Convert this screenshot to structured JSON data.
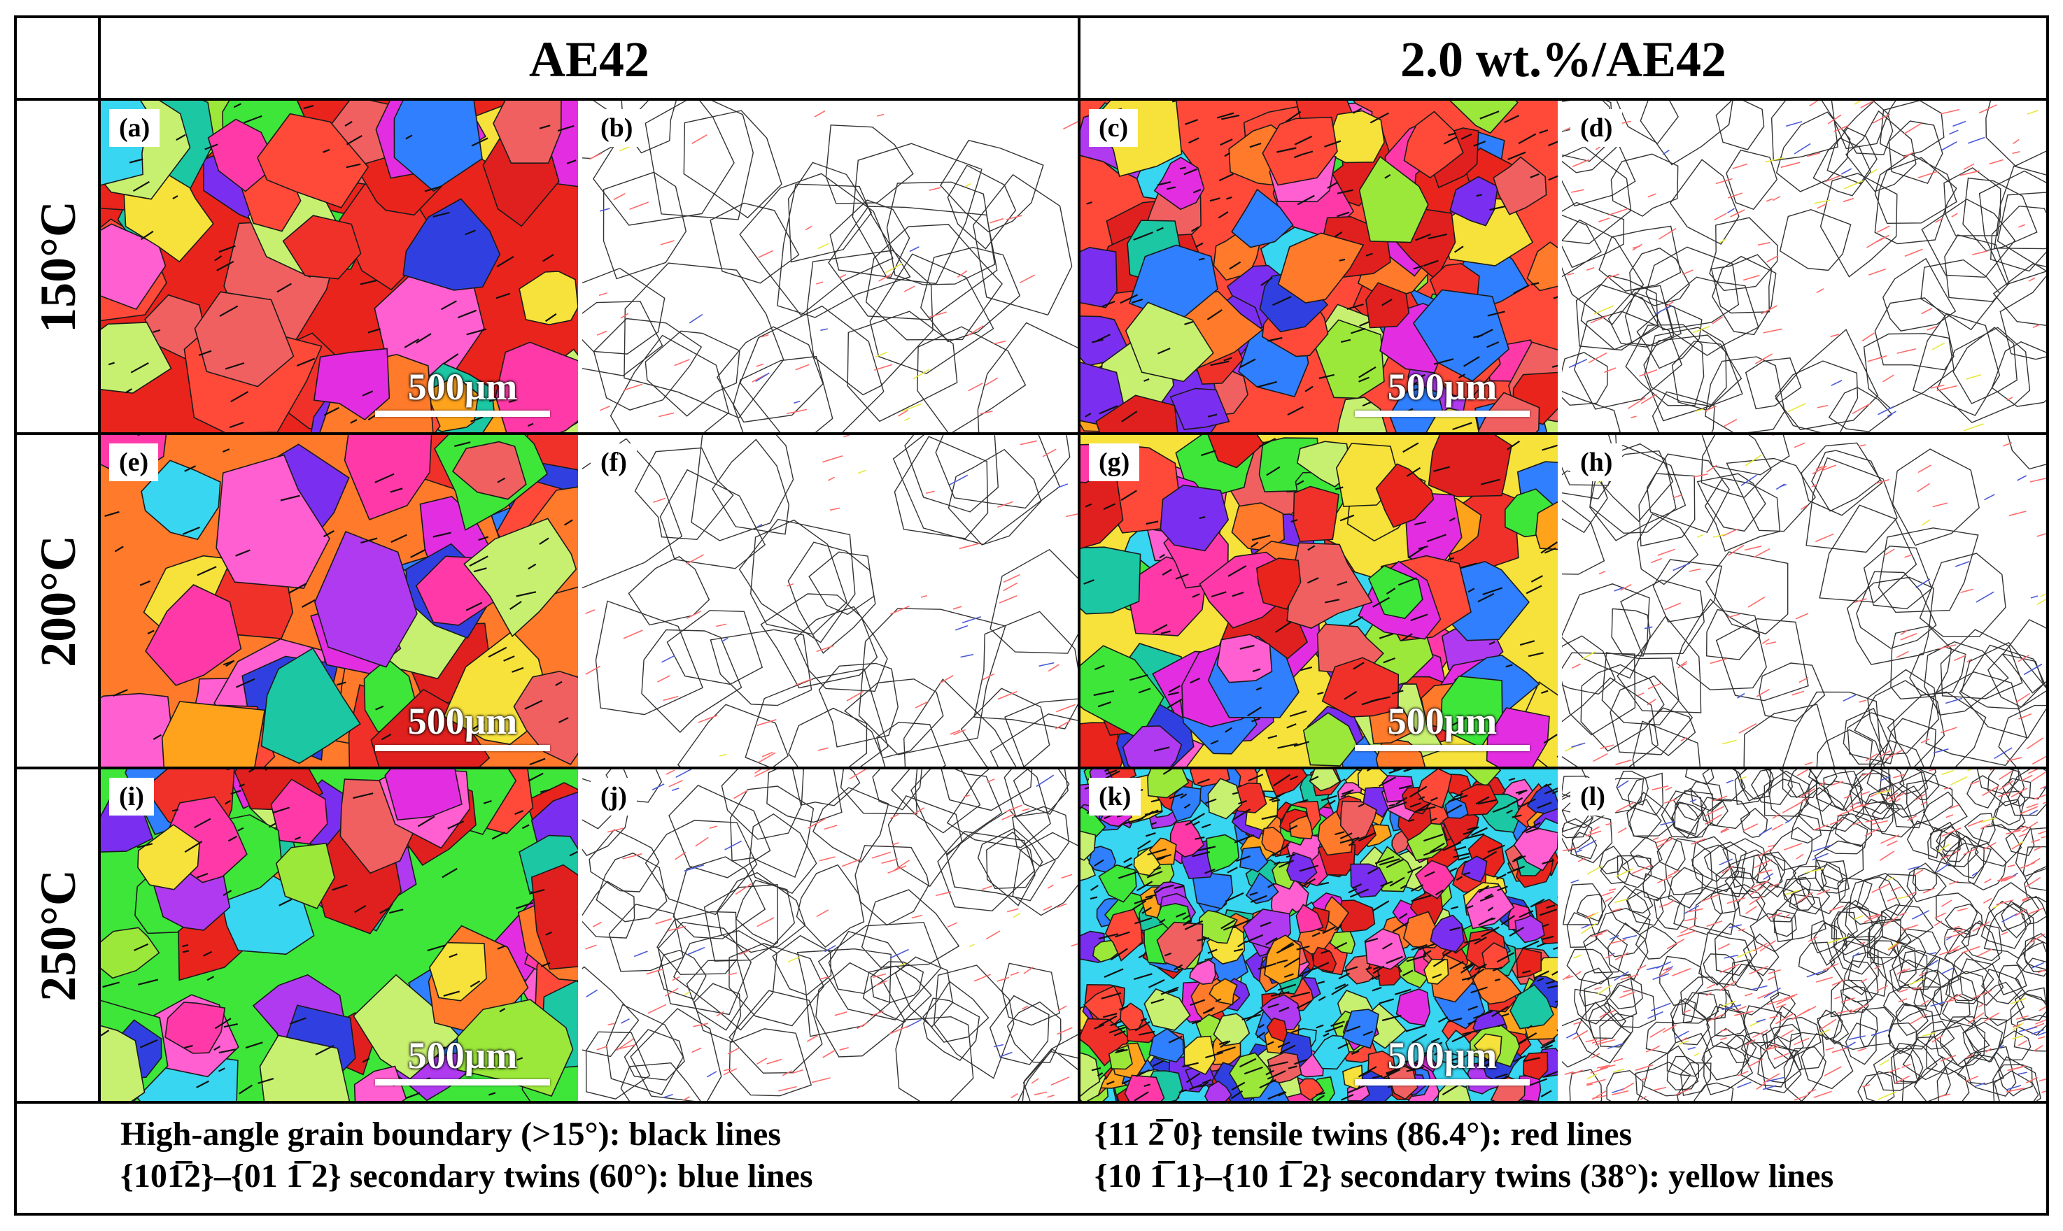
{
  "header": {
    "col1": "AE42",
    "col2": "2.0 wt.%/AE42"
  },
  "rows": [
    "150°C",
    "200°C",
    "250°C"
  ],
  "panels": [
    {
      "label": "(a)",
      "type": "ipf",
      "scalebar": "500μm"
    },
    {
      "label": "(b)",
      "type": "boundary"
    },
    {
      "label": "(c)",
      "type": "ipf",
      "scalebar": "500μm"
    },
    {
      "label": "(d)",
      "type": "boundary"
    },
    {
      "label": "(e)",
      "type": "ipf",
      "scalebar": "500μm"
    },
    {
      "label": "(f)",
      "type": "boundary"
    },
    {
      "label": "(g)",
      "type": "ipf",
      "scalebar": "500μm"
    },
    {
      "label": "(h)",
      "type": "boundary"
    },
    {
      "label": "(i)",
      "type": "ipf",
      "scalebar": "500μm"
    },
    {
      "label": "(j)",
      "type": "boundary"
    },
    {
      "label": "(k)",
      "type": "ipf",
      "scalebar": "500μm"
    },
    {
      "label": "(l)",
      "type": "boundary"
    }
  ],
  "legend": {
    "left": [
      "High-angle grain boundary (>15°): black lines",
      "{101̅2}–{01 1̅ 2} secondary twins (60°): blue lines"
    ],
    "right": [
      "{11 2̅ 0} tensile twins (86.4°): red lines",
      "{10 1̅ 1}–{10 1̅ 2} secondary twins (38°): yellow lines"
    ]
  },
  "colors": {
    "grain_palette": [
      "#e8241c",
      "#f0312a",
      "#ff4a3a",
      "#e0201e",
      "#ff7a2a",
      "#ffa31c",
      "#f6e23a",
      "#9be83a",
      "#3ee63a",
      "#1cc7a4",
      "#38d6f0",
      "#2f7fff",
      "#3040e0",
      "#7a2ff0",
      "#b03af0",
      "#e22ee0",
      "#ff3aa8",
      "#ff5fd0",
      "#f06060",
      "#c8f070"
    ],
    "hagb": "#333333",
    "tensile_twin": "#ff6a6a",
    "secondary_60": "#4a5ad8",
    "secondary_38": "#e8e83a"
  }
}
